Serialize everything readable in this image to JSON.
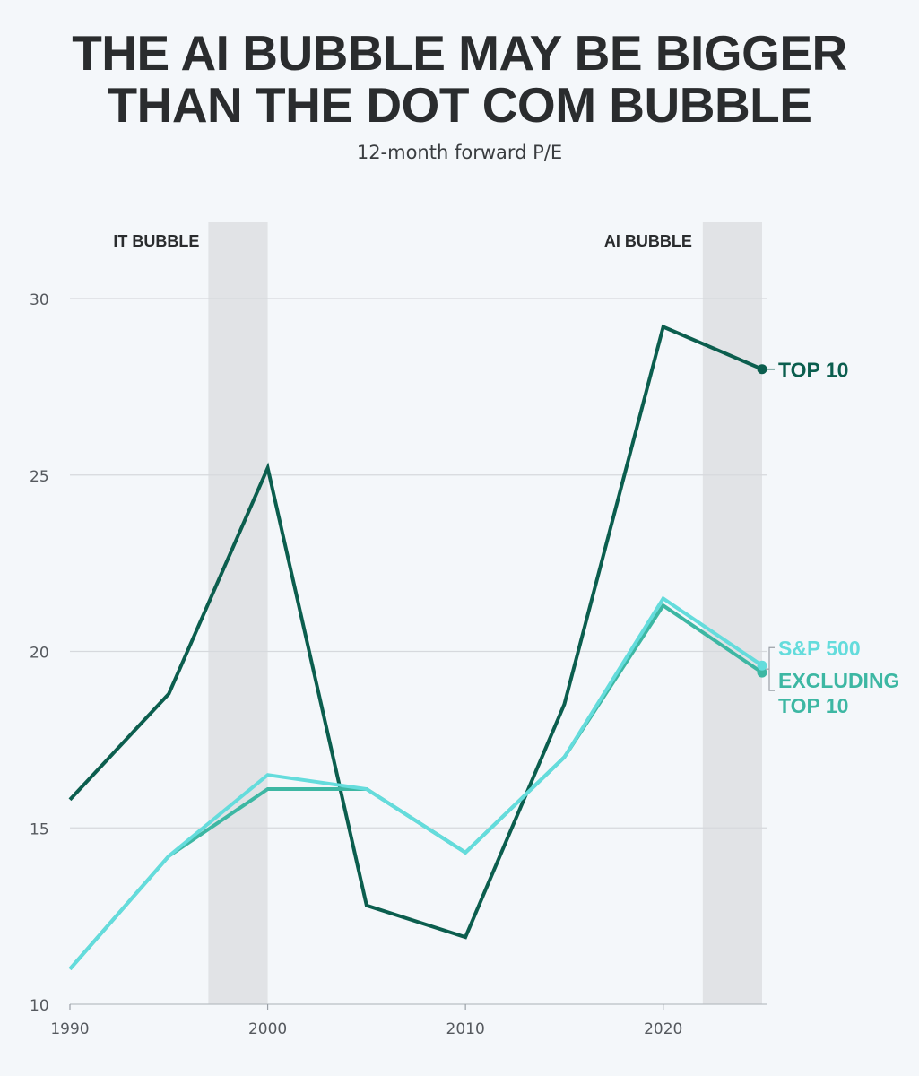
{
  "headline": {
    "line1": "THE AI BUBBLE MAY BE BIGGER",
    "line2": "THAN THE DOT COM BUBBLE"
  },
  "subtitle": "12-month forward P/E",
  "chart_data": {
    "type": "line",
    "title": "THE AI BUBBLE MAY BE BIGGER THAN THE DOT COM BUBBLE",
    "subtitle": "12-month forward P/E",
    "xlabel": "",
    "ylabel": "",
    "xlim": [
      1990,
      2025
    ],
    "ylim": [
      10,
      31
    ],
    "x_ticks": [
      1990,
      2000,
      2010,
      2020
    ],
    "y_ticks": [
      10,
      15,
      20,
      25,
      30
    ],
    "grid": "horizontal",
    "bands": [
      {
        "label": "IT BUBBLE",
        "x_start": 1997,
        "x_end": 2000
      },
      {
        "label": "AI BUBBLE",
        "x_start": 2022,
        "x_end": 2025
      }
    ],
    "x": [
      1990,
      1995,
      2000,
      2005,
      2010,
      2015,
      2020,
      2025
    ],
    "series": [
      {
        "name": "TOP 10",
        "color": "#0b5e4e",
        "values": [
          15.8,
          18.8,
          25.2,
          12.8,
          11.9,
          18.5,
          29.2,
          28.0
        ],
        "label_lines": [
          "TOP 10"
        ]
      },
      {
        "name": "EXCLUDING TOP 10",
        "color": "#3db7a3",
        "values": [
          11.0,
          14.2,
          16.1,
          16.1,
          14.3,
          17.0,
          21.3,
          19.4
        ],
        "label_lines": [
          "EXCLUDING",
          "TOP 10"
        ]
      },
      {
        "name": "S&P 500",
        "color": "#64dcdc",
        "values": [
          11.0,
          14.2,
          16.5,
          16.1,
          14.3,
          17.0,
          21.5,
          19.6
        ],
        "label_lines": [
          "S&P 500"
        ]
      }
    ]
  }
}
